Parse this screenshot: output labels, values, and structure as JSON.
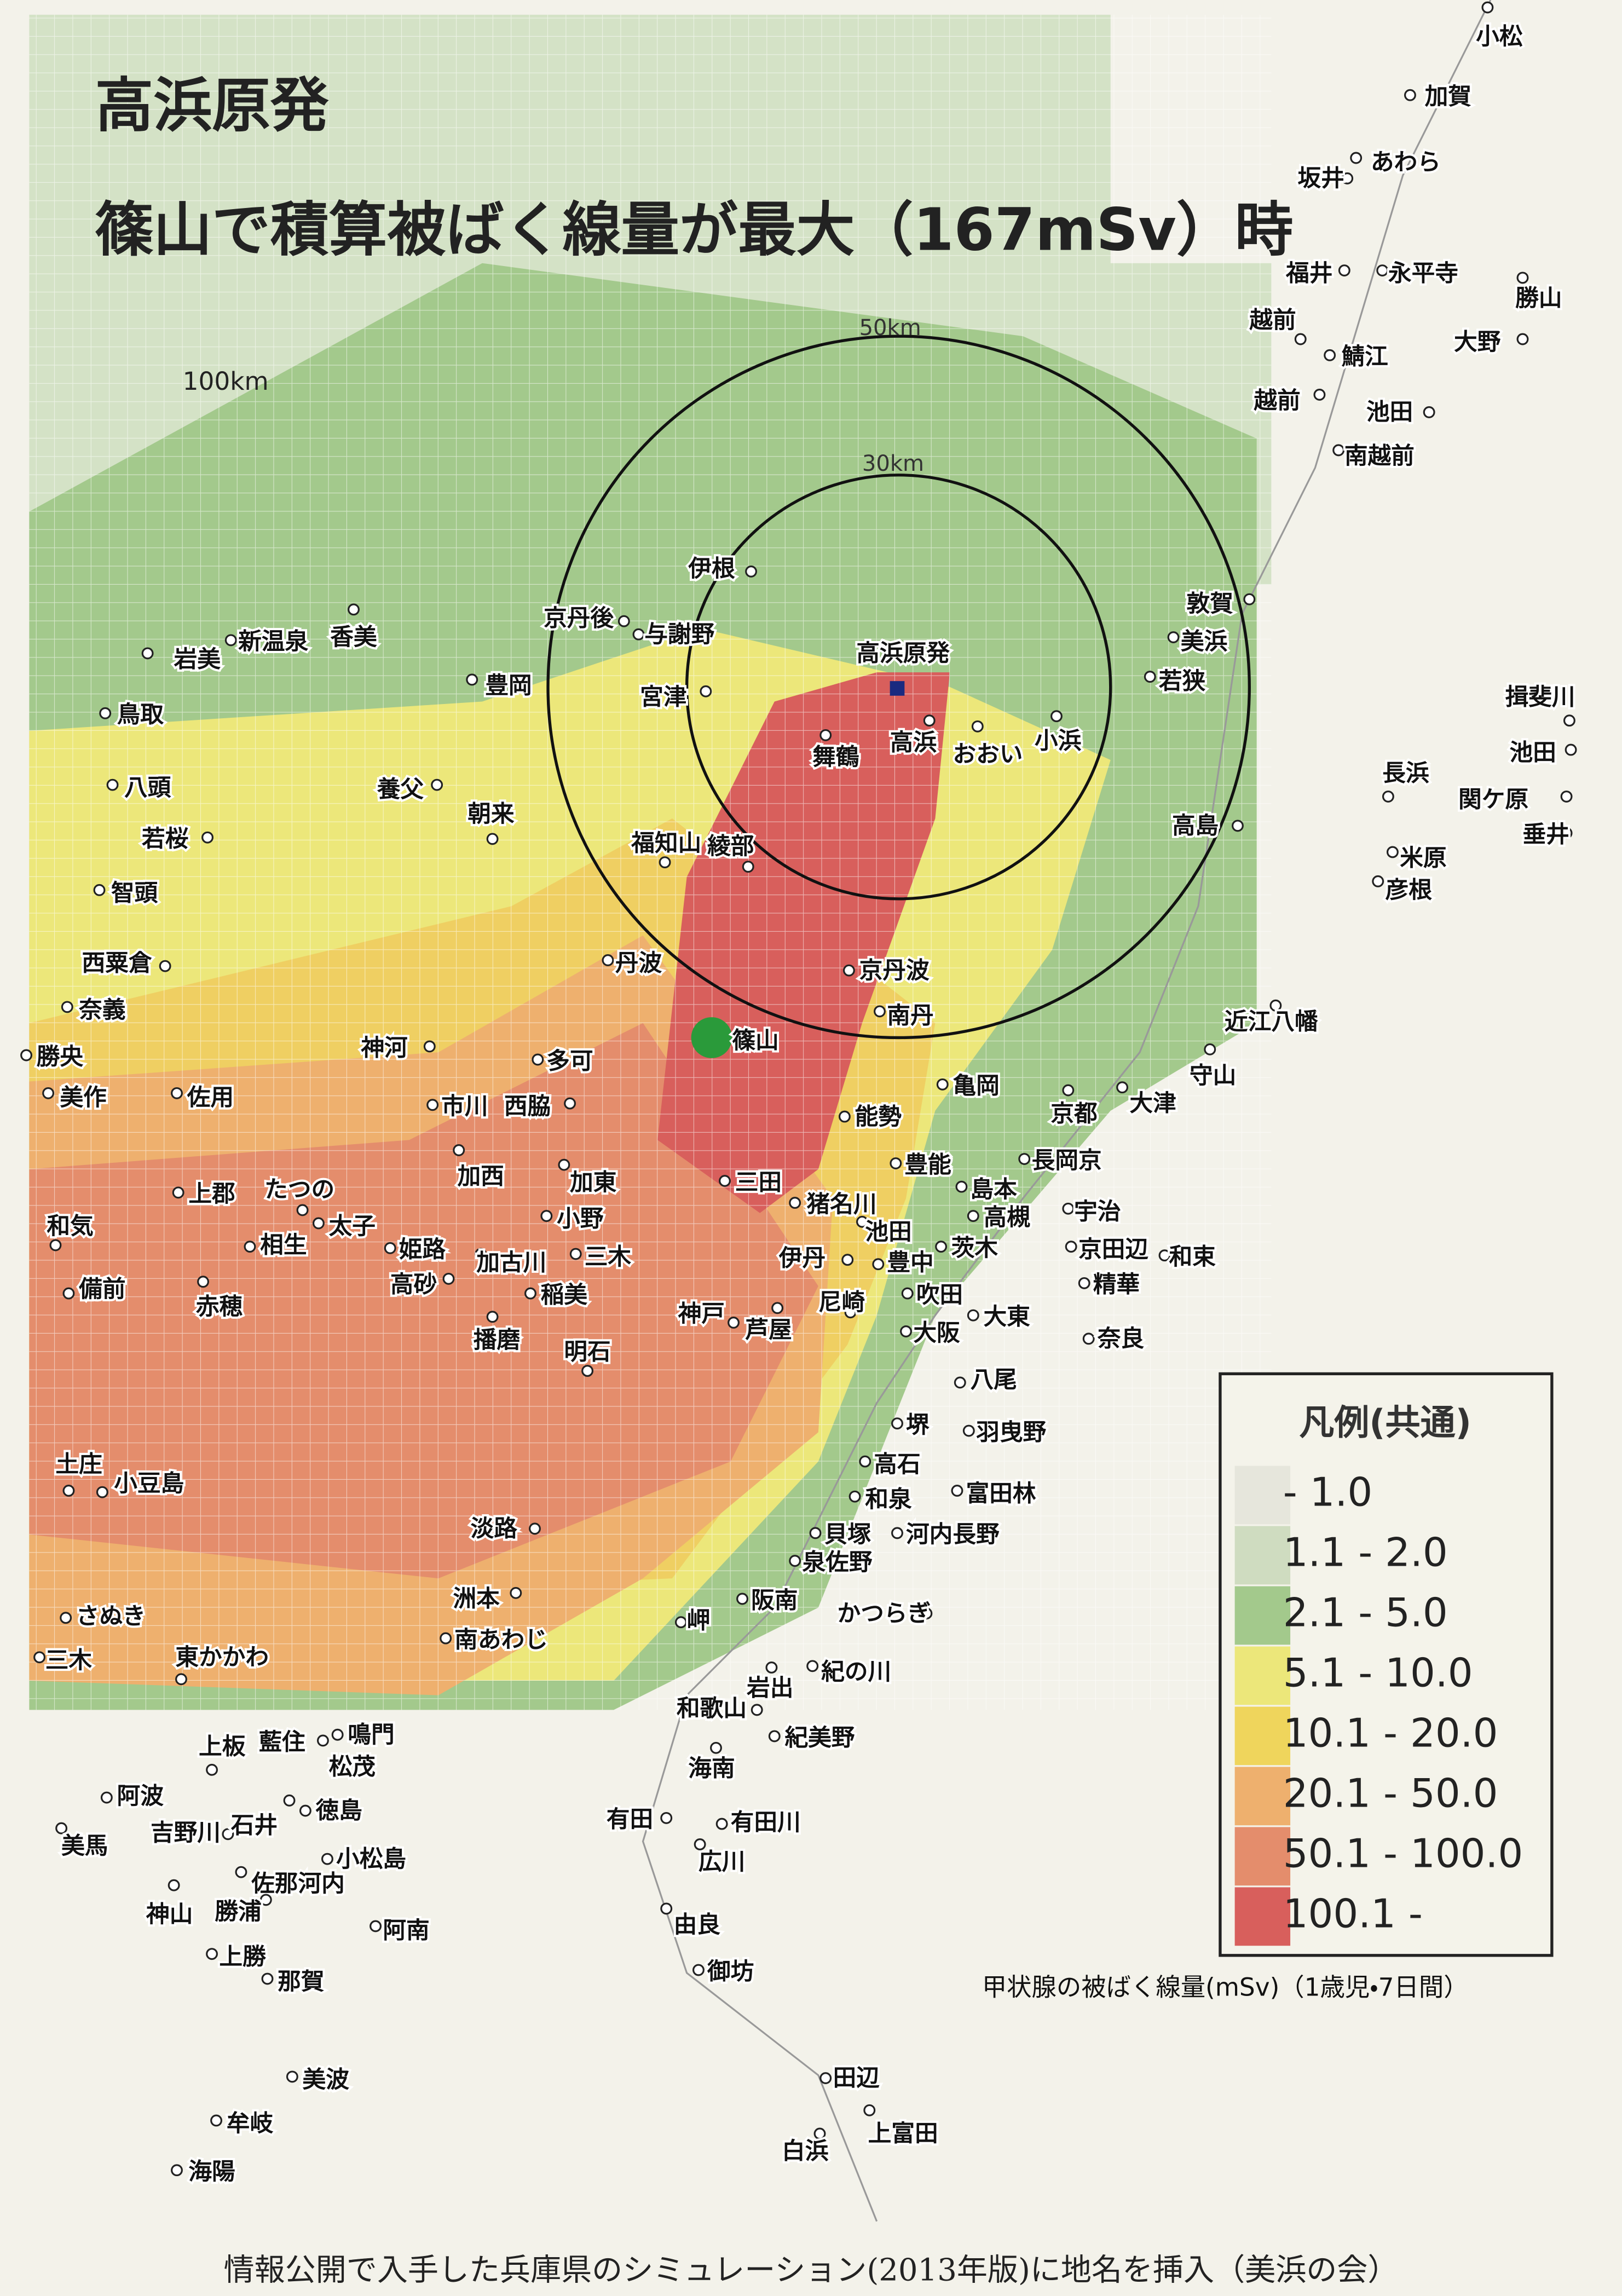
{
  "header": {
    "title": "高浜原発",
    "subtitle": "篠山で積算被ばく線量が最大（167mSv）時"
  },
  "distances": [
    "100km",
    "50km",
    "30km"
  ],
  "places": [
    "小松",
    "加賀",
    "あわら",
    "坂井",
    "福井",
    "永平寺",
    "勝山",
    "越前",
    "鯖江",
    "大野",
    "越前",
    "池田",
    "南越前",
    "敦賀",
    "美浜",
    "若狭",
    "揖斐川",
    "池田",
    "長浜",
    "関ケ原",
    "垂井",
    "高島",
    "米原",
    "彦根",
    "伊根",
    "京丹後",
    "与謝野",
    "宮津",
    "高浜原発",
    "舞鶴",
    "高浜",
    "おおい",
    "小浜",
    "新温泉",
    "香美",
    "岩美",
    "豊岡",
    "鳥取",
    "八頭",
    "養父",
    "朝来",
    "若桜",
    "福知山",
    "綾部",
    "智頭",
    "京丹波",
    "丹波",
    "西粟倉",
    "南丹",
    "奈義",
    "近江八幡",
    "勝央",
    "篠山",
    "神河",
    "多可",
    "守山",
    "美作",
    "佐用",
    "亀岡",
    "大津",
    "京都",
    "市川",
    "西脇",
    "能勢",
    "豊能",
    "長岡京",
    "加西",
    "加東",
    "上郡",
    "たつの",
    "三田",
    "島本",
    "猪名川",
    "宇治",
    "小野",
    "高槻",
    "太子",
    "和気",
    "池田",
    "相生",
    "姫路",
    "茨木",
    "京田辺",
    "和束",
    "伊丹",
    "豊中",
    "加古川",
    "三木",
    "稲美",
    "高砂",
    "吹田",
    "精華",
    "備前",
    "赤穂",
    "神戸",
    "芦屋",
    "尼崎",
    "大東",
    "播磨",
    "大阪",
    "奈良",
    "明石",
    "八尾",
    "堺",
    "羽曳野",
    "土庄",
    "小豆島",
    "高石",
    "富田林",
    "和泉",
    "淡路",
    "貝塚",
    "河内長野",
    "泉佐野",
    "洲本",
    "阪南",
    "さぬき",
    "岬",
    "かつらぎ",
    "南あわじ",
    "三木",
    "東かかわ",
    "岩出",
    "紀の川",
    "和歌山",
    "鳴門",
    "上板",
    "藍住",
    "松茂",
    "紀美野",
    "海南",
    "阿波",
    "徳島",
    "有田",
    "有田川",
    "美馬",
    "吉野川",
    "石井",
    "小松島",
    "広川",
    "佐那河内",
    "神山",
    "勝浦",
    "由良",
    "阿南",
    "上勝",
    "那賀",
    "御坊",
    "美波",
    "田辺",
    "上富田",
    "牟岐",
    "白浜",
    "海陽"
  ],
  "legend": {
    "title": "凡例(共通)",
    "items": [
      {
        "label": "- 1.0",
        "color": "#e6e6dc"
      },
      {
        "label": "1.1 - 2.0",
        "color": "#cfdcc0"
      },
      {
        "label": "2.1 - 5.0",
        "color": "#a3c98c"
      },
      {
        "label": "5.1 - 10.0",
        "color": "#ece77a"
      },
      {
        "label": "10.1 - 20.0",
        "color": "#efd55c"
      },
      {
        "label": "20.1 - 50.0",
        "color": "#eeb06e"
      },
      {
        "label": "50.1 - 100.0",
        "color": "#e48d6c"
      },
      {
        "label": "100.1 -",
        "color": "#d85f5c"
      }
    ],
    "caption": "甲状腺の被ばく線量(mSv)（1歳児・7日間）"
  },
  "footer": "情報公開で入手した兵庫県のシミュレーション(2013年版)に地名を挿入（美浜の会）"
}
